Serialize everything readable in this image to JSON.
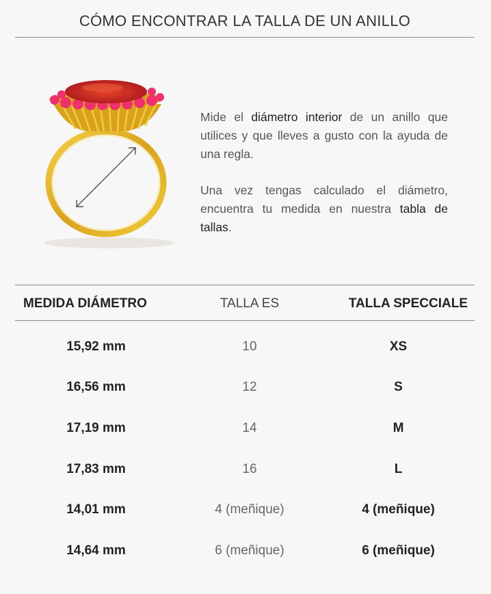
{
  "header": {
    "title": "CÓMO ENCONTRAR LA TALLA DE UN ANILLO"
  },
  "colors": {
    "background": "#f7f7f7",
    "gold": "#e2b52a",
    "gem": "#c41e1e",
    "halo": "#f0306e"
  },
  "instructions": {
    "p1": {
      "a": "Mide el ",
      "b": "diámetro interior",
      "c": " de un anillo que utilices y que lleves a gusto con la ayuda de una regla."
    },
    "p2": {
      "a": "Una vez tengas calculado el diámetro, encuentra tu medida en nuestra ",
      "b": "tabla de tallas",
      "c": "."
    }
  },
  "table": {
    "headers": [
      "MEDIDA DIÁMETRO",
      "TALLA ES",
      "TALLA SPECCIALE"
    ],
    "rows": [
      [
        "15,92 mm",
        "10",
        "XS"
      ],
      [
        "16,56 mm",
        "12",
        "S"
      ],
      [
        "17,19 mm",
        "14",
        "M"
      ],
      [
        "17,83 mm",
        "16",
        "L"
      ],
      [
        "14,01 mm",
        "4 (meñique)",
        "4 (meñique)"
      ],
      [
        "14,64 mm",
        "6 (meñique)",
        "6 (meñique)"
      ]
    ]
  }
}
